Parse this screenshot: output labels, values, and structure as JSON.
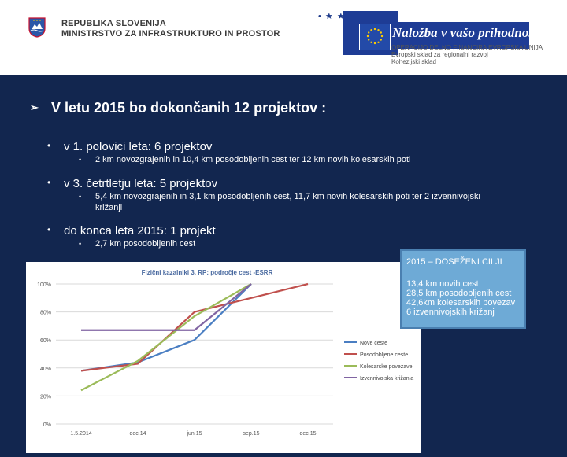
{
  "header": {
    "ministry_line1": "REPUBLIKA SLOVENIJA",
    "ministry_line2": "MINISTRSTVO ZA INFRASTRUKTURO IN PROSTOR",
    "eu_title": "Naložba v vašo prihodnost",
    "eu_sub1": "OPERACIJO DELNO FINANCIRA EVROPSKA UNIJA",
    "eu_sub2": "Evropski sklad za regionalni razvoj",
    "eu_sub3": "Kohezijski sklad"
  },
  "content": {
    "main_heading": "V letu 2015 bo dokončanih 12 projektov :",
    "items": [
      {
        "label": "v 1. polovici leta: 6 projektov",
        "sub": "2 km novozgrajenih in 10,4 km posodobljenih cest ter 12 km novih kolesarskih poti"
      },
      {
        "label": "v 3. četrtletju leta: 5 projektov",
        "sub": "5,4 km novozgrajenih in 3,1 km posodobljenih cest, 11,7 km novih kolesarskih poti ter 2 izvennivojski",
        "sub2": "križanji"
      },
      {
        "label": "do konca leta 2015: 1 projekt",
        "sub": "2,7 km posodobljenih cest"
      }
    ]
  },
  "callout": {
    "title": "2015 – DOSEŽENI CILJI",
    "lines": [
      "13,4 km novih cest",
      "28,5 km posodobljenih cest",
      "42,6km kolesarskih povezav",
      "6 izvennivojskih križanj"
    ]
  },
  "chart_data": {
    "type": "line",
    "title": "Fizični kazalniki 3. RP: področje cest -ESRR",
    "categories": [
      "1.5.2014",
      "dec.14",
      "jun.15",
      "sep.15",
      "dec.15"
    ],
    "y_ticks": [
      "0%",
      "20%",
      "40%",
      "60%",
      "80%",
      "100%"
    ],
    "ylim": [
      0,
      100
    ],
    "grid": true,
    "legend_position": "right",
    "series": [
      {
        "name": "Nove ceste",
        "color": "#4a7ec2",
        "values": [
          38,
          44,
          60,
          100,
          null
        ]
      },
      {
        "name": "Posodobljene ceste",
        "color": "#c0504d",
        "values": [
          38,
          43,
          80,
          90,
          100
        ]
      },
      {
        "name": "Kolesarske povezave",
        "color": "#9bbb59",
        "values": [
          24,
          45,
          77,
          100,
          null
        ]
      },
      {
        "name": "Izvennivojska križanja",
        "color": "#8064a2",
        "values": [
          67,
          67,
          67,
          100,
          null
        ]
      }
    ]
  },
  "colors": {
    "slide_bg": "#12264f",
    "callout_bg": "#6eaad6",
    "eu_blue": "#1e3c95"
  }
}
